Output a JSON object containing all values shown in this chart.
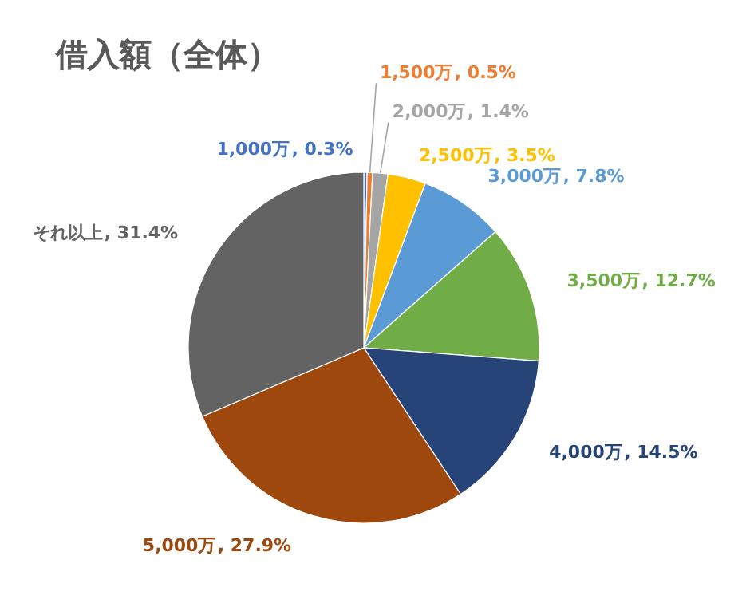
{
  "chart_data": {
    "type": "pie",
    "title": "借入額（全体）",
    "categories": [
      "1,000万",
      "1,500万",
      "2,000万",
      "2,500万",
      "3,000万",
      "3,500万",
      "4,000万",
      "5,000万",
      "それ以上"
    ],
    "values": [
      0.3,
      0.5,
      1.4,
      3.5,
      7.8,
      12.7,
      14.5,
      27.9,
      31.4
    ],
    "colors": [
      "#4472c4",
      "#ed7d31",
      "#a5a5a5",
      "#ffc000",
      "#5b9bd5",
      "#70ad47",
      "#264478",
      "#9e480e",
      "#636363"
    ],
    "value_labels": [
      ", 0.3%",
      ", 0.5%",
      ", 1.4%",
      ", 3.5%",
      ", 7.8%",
      ", 12.7%",
      ", 14.5%",
      ", 27.9%",
      ", 31.4%"
    ]
  }
}
